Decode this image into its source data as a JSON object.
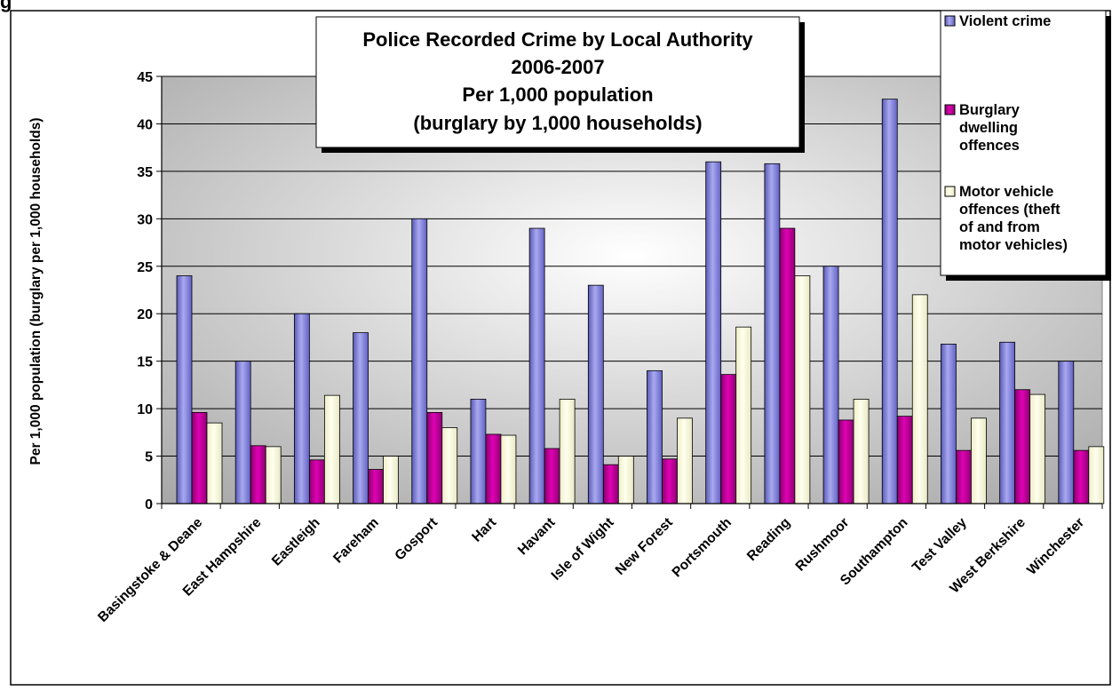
{
  "colors": {
    "violent": "#7b7bde",
    "burglary": "#c0009a",
    "motor": "#fdfde0",
    "plot_bg_edge": "#a8a8a8",
    "plot_bg_center": "#ffffff"
  },
  "chart_data": {
    "type": "bar",
    "title_lines": [
      "Police Recorded Crime by Local Authority",
      "2006-2007",
      "Per 1,000 population",
      "(burglary by 1,000 households)"
    ],
    "header_fragment": "g",
    "xlabel": "",
    "ylabel": "Per 1,000 population (burglary per 1,000 households)",
    "ylim": [
      0,
      45
    ],
    "yticks": [
      0,
      5,
      10,
      15,
      20,
      25,
      30,
      35,
      40,
      45
    ],
    "grid": true,
    "legend_position": "top-right",
    "categories": [
      "Basingstoke & Deane",
      "East Hampshire",
      "Eastleigh",
      "Fareham",
      "Gosport",
      "Hart",
      "Havant",
      "Isle of Wight",
      "New Forest",
      "Portsmouth",
      "Reading",
      "Rushmoor",
      "Southampton",
      "Test Valley",
      "West Berkshire",
      "Winchester"
    ],
    "series": [
      {
        "name": "Violent crime",
        "legend_lines": [
          "Violent crime"
        ],
        "color": "#7b7bde",
        "values": [
          24,
          15,
          20,
          18,
          30,
          11,
          29,
          23,
          14,
          36,
          35.8,
          25,
          42.6,
          16.8,
          17,
          15
        ]
      },
      {
        "name": "Burglary dwelling offences",
        "legend_lines": [
          "Burglary",
          "dwelling",
          "offences"
        ],
        "color": "#c0009a",
        "values": [
          9.6,
          6.1,
          4.6,
          3.6,
          9.6,
          7.3,
          5.8,
          4.1,
          4.7,
          13.6,
          29,
          8.8,
          9.2,
          5.6,
          12,
          5.6
        ]
      },
      {
        "name": "Motor vehicle offences (theft of and from motor vehicles)",
        "legend_lines": [
          "Motor vehicle",
          "offences (theft",
          "of and from",
          "motor vehicles)"
        ],
        "color": "#fdfde0",
        "values": [
          8.5,
          6,
          11.4,
          5,
          8,
          7.2,
          11,
          5,
          9,
          18.6,
          24,
          11,
          22,
          9,
          11.5,
          6
        ]
      }
    ]
  }
}
